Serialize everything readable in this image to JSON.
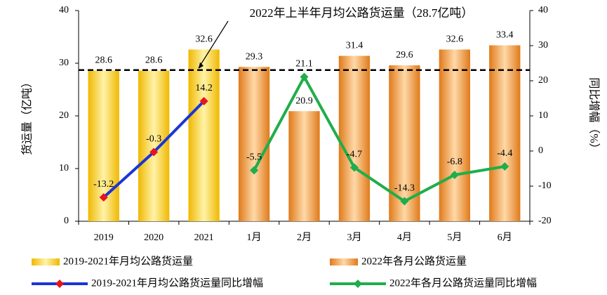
{
  "chart_data": {
    "type": "bar_line",
    "categories": [
      "2019",
      "2020",
      "2021",
      "1月",
      "2月",
      "3月",
      "4月",
      "5月",
      "6月"
    ],
    "series": [
      {
        "name": "2019-2021年月均公路货运量",
        "kind": "bar",
        "color": "#f5c518",
        "values": [
          28.6,
          28.6,
          32.6,
          null,
          null,
          null,
          null,
          null,
          null
        ]
      },
      {
        "name": "2022年各月公路货运量",
        "kind": "bar",
        "color": "#e8892a",
        "values": [
          null,
          null,
          null,
          29.3,
          20.9,
          31.4,
          29.6,
          32.6,
          33.4
        ]
      },
      {
        "name": "2019-2021年月均公路货运量同比增幅",
        "kind": "line",
        "axis": "y2",
        "color": "#1a35d6",
        "marker_color": "#e8141e",
        "values": [
          -13.2,
          -0.3,
          14.2,
          null,
          null,
          null,
          null,
          null,
          null
        ]
      },
      {
        "name": "2022年各月公路货运量同比增幅",
        "kind": "line",
        "axis": "y2",
        "color": "#1fae4b",
        "marker_color": "#1fae4b",
        "values": [
          null,
          null,
          null,
          -5.5,
          21.1,
          -4.7,
          -14.3,
          -6.8,
          -4.4
        ]
      }
    ],
    "reference_line": {
      "value": 28.7,
      "label": "2022年上半年月均公路货运量（28.7亿吨）"
    },
    "ylabel": "货运量（亿吨）",
    "y2label": "同比增幅（%）",
    "ylim": [
      0,
      40
    ],
    "yticks": [
      0,
      10,
      20,
      30,
      40
    ],
    "y2lim": [
      -20,
      40
    ],
    "y2ticks": [
      -20,
      -10,
      0,
      10,
      20,
      30,
      40
    ]
  }
}
